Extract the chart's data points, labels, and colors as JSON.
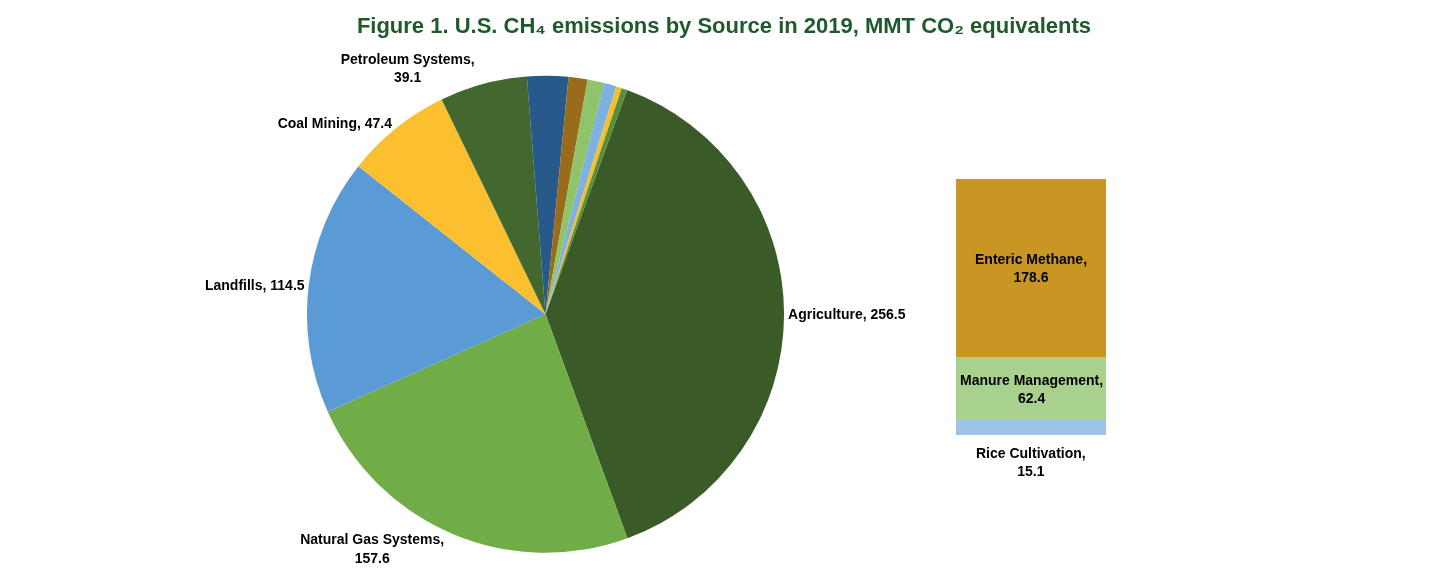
{
  "chart_data": [
    {
      "type": "pie",
      "title": "Figure 1. U.S. CH₄ emissions by Source in 2019, MMT CO₂ equivalents",
      "categories": [
        "Agriculture, 256.5",
        "Natural Gas Systems, 157.6",
        "Landfills, 114.5",
        "Coal Mining, 47.4",
        "Petroleum Systems, 39.1",
        null,
        null,
        null,
        null,
        null,
        null
      ],
      "values": [
        256.5,
        157.6,
        114.5,
        47.4,
        39.1,
        18.4,
        8.5,
        7.5,
        5.5,
        2.5,
        2.5
      ],
      "colors": [
        "#3a5a27",
        "#70ad47",
        "#5b9bd5",
        "#fbbf2f",
        "#43682f",
        "#27598a",
        "#9a6c1a",
        "#8fc46a",
        "#7eb0e0",
        "#f5c02c",
        "#5a8f3a"
      ],
      "legend": false
    },
    {
      "type": "bar",
      "stacked": true,
      "categories": [
        null
      ],
      "legend": false,
      "tick_labels": false,
      "series": [
        {
          "name": "Rice Cultivation,",
          "color": "#9dc3e6",
          "values": [
            15.1
          ],
          "value_labels": [
            "15.1"
          ]
        },
        {
          "name": "Manure Management,",
          "color": "#a9d18e",
          "values": [
            62.4
          ],
          "value_labels": [
            "62.4"
          ]
        },
        {
          "name": "Enteric Methane,",
          "color": "#c99623",
          "values": [
            178.6
          ],
          "value_labels": [
            "178.6"
          ]
        }
      ]
    }
  ]
}
